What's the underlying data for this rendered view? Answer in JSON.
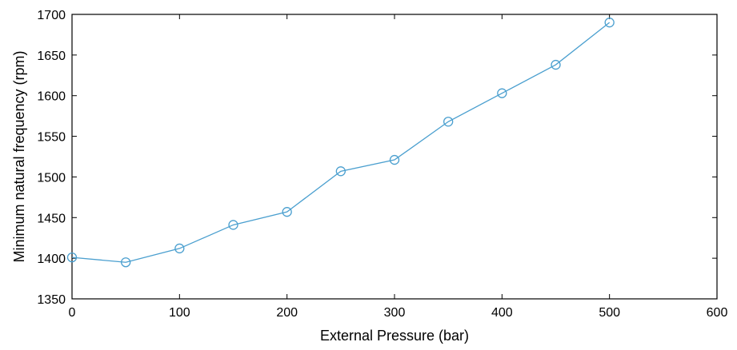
{
  "chart_data": {
    "type": "line",
    "title": "",
    "xlabel": "External Pressure (bar)",
    "ylabel": "Minimum natural frequency (rpm)",
    "xlim": [
      0,
      600
    ],
    "ylim": [
      1350,
      1700
    ],
    "xticks": [
      0,
      100,
      200,
      300,
      400,
      500,
      600
    ],
    "yticks": [
      1350,
      1400,
      1450,
      1500,
      1550,
      1600,
      1650,
      1700
    ],
    "grid": false,
    "legend": "none",
    "series_color": "#4a9fcf",
    "series": [
      {
        "x": [
          0,
          50,
          100,
          150,
          200,
          250,
          300,
          350,
          400,
          450,
          500
        ],
        "values": [
          1401,
          1395,
          1412,
          1441,
          1457,
          1507,
          1521,
          1568,
          1603,
          1638,
          1690
        ],
        "marker": "circle"
      }
    ]
  }
}
